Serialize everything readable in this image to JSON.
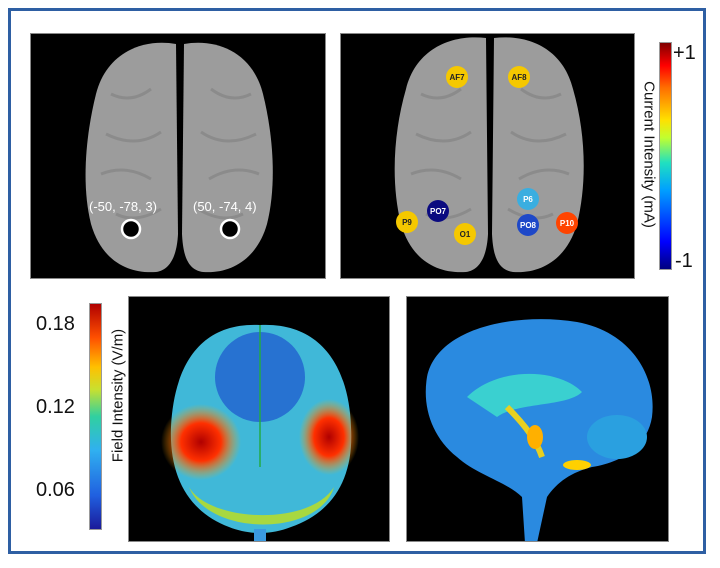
{
  "panel_a": {
    "coordinates": [
      {
        "label": "(-50, -78, 3)"
      },
      {
        "label": "(50, -74, 4)"
      }
    ]
  },
  "panel_b": {
    "electrodes": [
      {
        "label": "AF7",
        "color": "#f5c800",
        "text_color": "#222"
      },
      {
        "label": "AF8",
        "color": "#f5c800",
        "text_color": "#222"
      },
      {
        "label": "P6",
        "color": "#3aaee0",
        "text_color": "#fff"
      },
      {
        "label": "PO7",
        "color": "#0a0a80",
        "text_color": "#fff"
      },
      {
        "label": "P9",
        "color": "#f5c800",
        "text_color": "#222"
      },
      {
        "label": "O1",
        "color": "#f5c800",
        "text_color": "#222"
      },
      {
        "label": "PO8",
        "color": "#1e48c8",
        "text_color": "#fff"
      },
      {
        "label": "P10",
        "color": "#ff4400",
        "text_color": "#fff"
      }
    ],
    "colorbar": {
      "title": "Current Intensity (mA)",
      "max_label": "+1",
      "min_label": "-1",
      "colormap": "jet"
    }
  },
  "panel_c": {
    "colorbar": {
      "title": "Field Intensity (V/m)",
      "ticks": [
        "0.18",
        "0.12",
        "0.06"
      ],
      "colormap": "jet"
    }
  },
  "colors": {
    "frame": "#2e5fa3",
    "brain_gray": "#9a9a9a"
  }
}
